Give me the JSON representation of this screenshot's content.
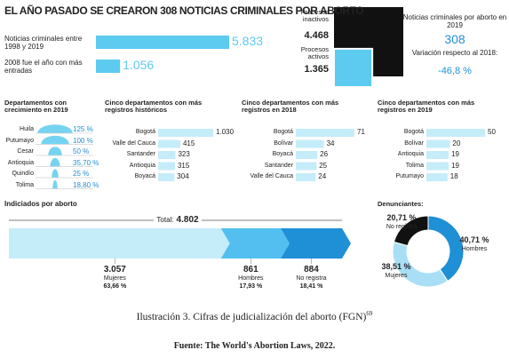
{
  "title": "EL AÑO PASADO SE CREARON 308 NOTICIAS CRIMINALES POR ABORTO",
  "chart_data": [
    {
      "type": "bar",
      "categories": [
        "Noticias criminales entre 1998 y 2019",
        "2008 fue el año con más entradas"
      ],
      "values": [
        5833,
        1056
      ],
      "value_labels": [
        "5.833",
        "1.056"
      ],
      "color": "#5ccbef"
    },
    {
      "type": "squares",
      "categories": [
        "Procesos inactivos",
        "Procesos activos"
      ],
      "values": [
        4468,
        1365
      ],
      "value_labels": [
        "4.468",
        "1.365"
      ],
      "colors": [
        "#111111",
        "#5ccbef"
      ]
    },
    {
      "type": "semicircle",
      "title": "Departamentos con crecimiento en 2019",
      "categories": [
        "Huila",
        "Putumayo",
        "Cesar",
        "Antioquia",
        "Quindío",
        "Tolima"
      ],
      "values": [
        125,
        100,
        50,
        35.7,
        25,
        18.8
      ],
      "value_labels": [
        "125 %",
        "100 %",
        "50 %",
        "35,70 %",
        "25 %",
        "18,80 %"
      ],
      "color": "#5ccbef"
    },
    {
      "type": "bar",
      "title": "Cinco departamentos con más registros históricos",
      "categories": [
        "Bogotá",
        "Valle del Cauca",
        "Santander",
        "Antioquia",
        "Boyacá"
      ],
      "values": [
        1030,
        415,
        323,
        315,
        304
      ],
      "value_labels": [
        "1.030",
        "415",
        "323",
        "315",
        "304"
      ],
      "color": "#c5ecf9"
    },
    {
      "type": "bar",
      "title": "Cinco departamentos con más registros en 2018",
      "categories": [
        "Bogotá",
        "Bolívar",
        "Boyacá",
        "Santander",
        "Valle del Cauca"
      ],
      "values": [
        71,
        34,
        26,
        25,
        24
      ],
      "value_labels": [
        "71",
        "34",
        "26",
        "25",
        "24"
      ],
      "color": "#c5ecf9"
    },
    {
      "type": "bar",
      "title": "Cinco departamentos con más registros en 2019",
      "categories": [
        "Bogotá",
        "Bolívar",
        "Antioquia",
        "Tolima",
        "Putumayo"
      ],
      "values": [
        50,
        20,
        19,
        19,
        18
      ],
      "value_labels": [
        "50",
        "20",
        "19",
        "19",
        "18"
      ],
      "color": "#c5ecf9"
    },
    {
      "type": "arrow",
      "title": "Indiciados por aborto",
      "total_label": "Total:",
      "total": 4802,
      "total_value_label": "4.802",
      "categories": [
        "Mujeres",
        "Hombres",
        "No registra"
      ],
      "values": [
        3057,
        861,
        884
      ],
      "value_labels": [
        "3.057",
        "861",
        "884"
      ],
      "percents": [
        63.66,
        17.93,
        18.41
      ],
      "percent_labels": [
        "63,66 %",
        "17,93 %",
        "18,41 %"
      ],
      "colors": [
        "#c5ecf9",
        "#52bff0",
        "#1f8fd6"
      ]
    },
    {
      "type": "donut",
      "title": "Denunciantes:",
      "categories": [
        "Hombres",
        "Mujeres",
        "No registra"
      ],
      "values": [
        40.71,
        38.51,
        20.71
      ],
      "value_labels": [
        "40,71 %",
        "38,51 %",
        "20,71 %"
      ],
      "colors": [
        "#1f8fd6",
        "#a8dff5",
        "#111111"
      ]
    }
  ],
  "highlight": {
    "label": "Noticias criminales por aborto en 2019",
    "value": 308,
    "change_label": "Variación respecto al 2018:",
    "change": "-46,8 %"
  },
  "caption": {
    "text": "Ilustración 3. Cifras de judicialización del aborto (FGN)",
    "note": "69"
  },
  "source": "Fuente: The World's Abortion Laws, 2022."
}
